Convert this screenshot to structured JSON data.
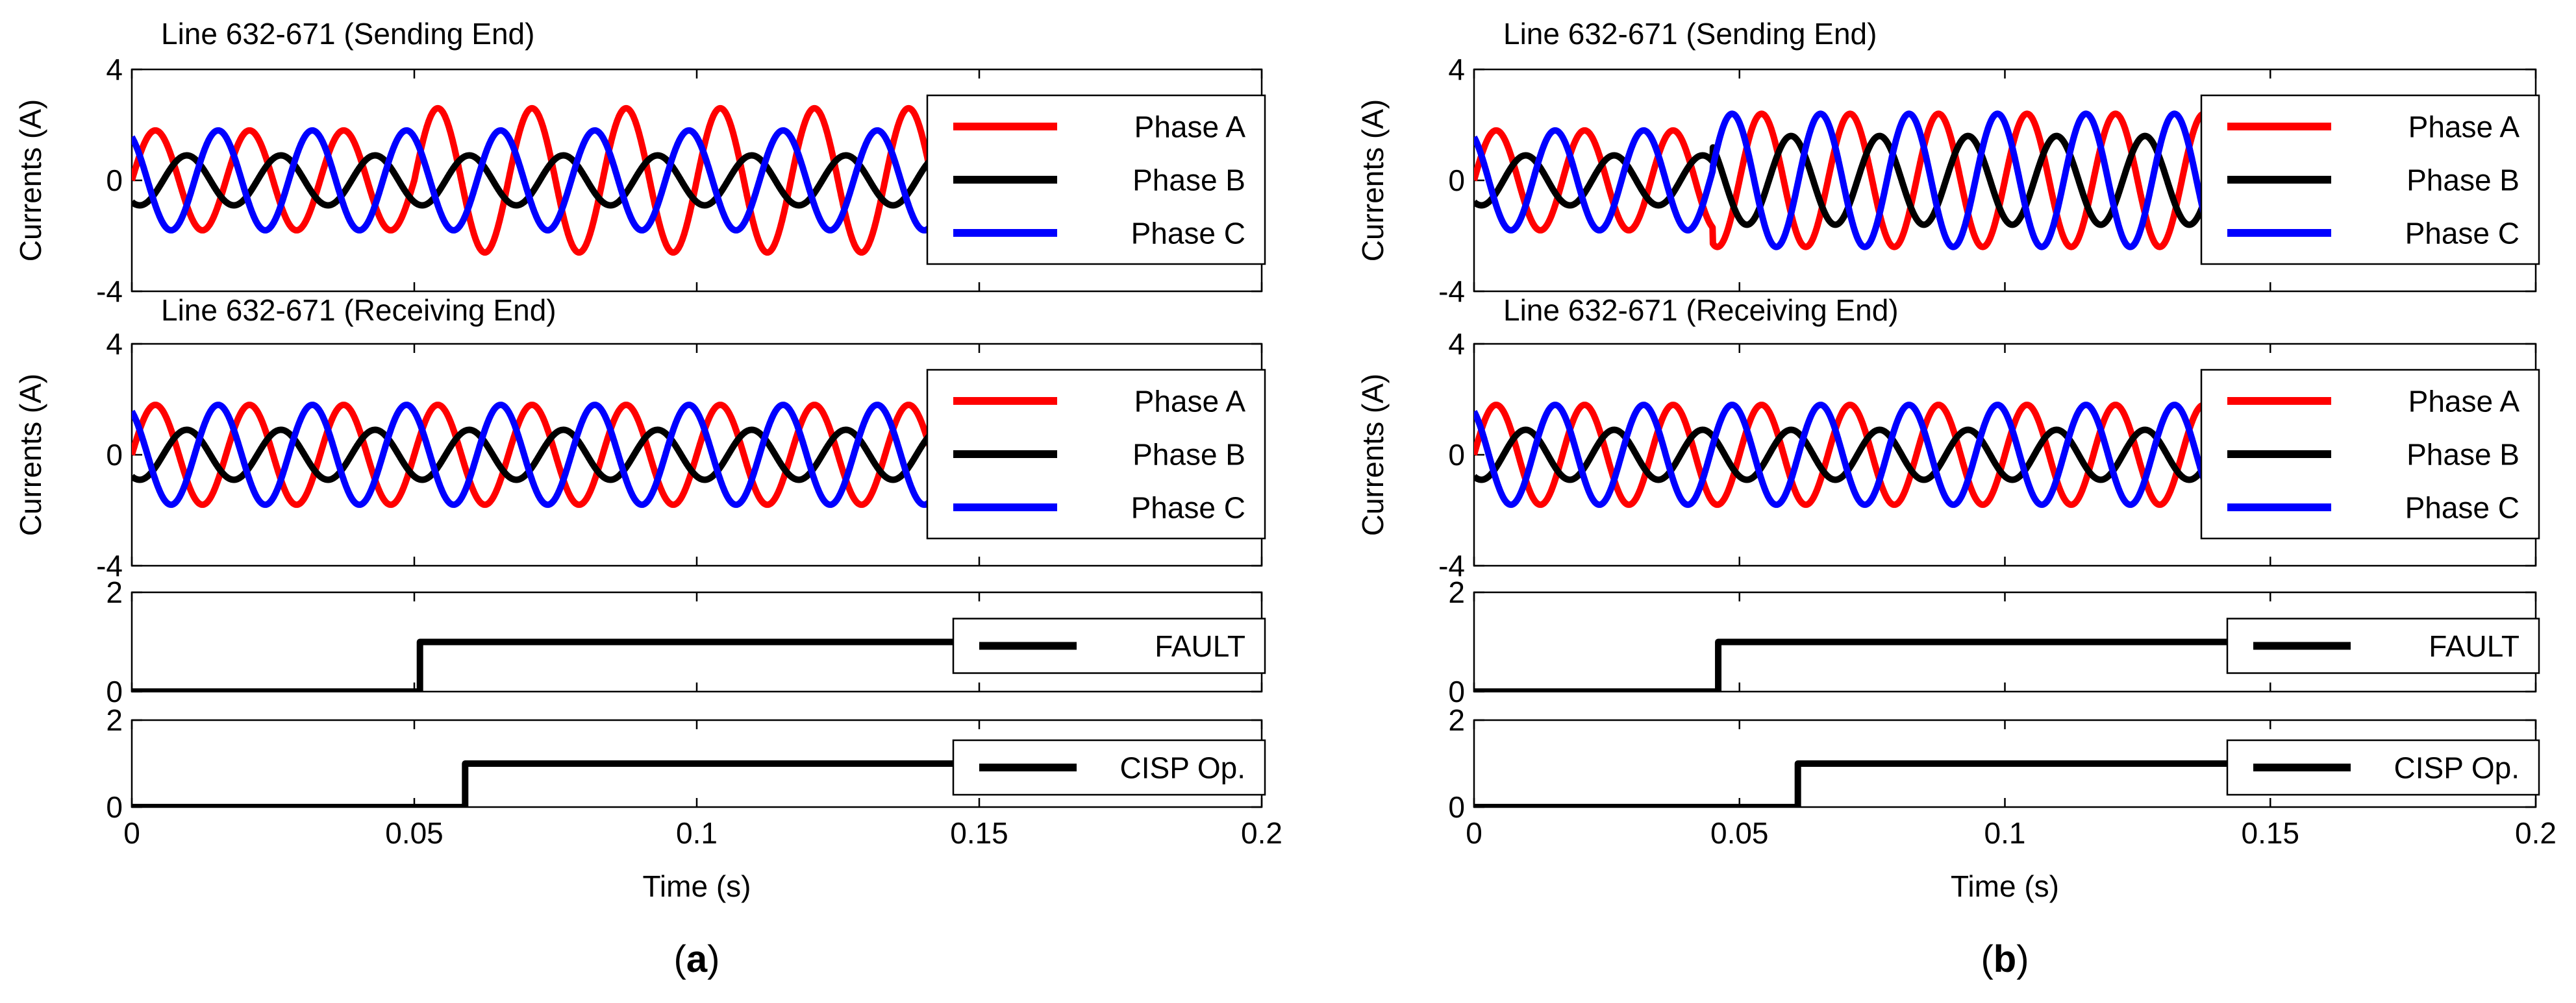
{
  "chart_data": [
    {
      "panel_label": "(a)",
      "xlabel": "Time (s)",
      "xlim": [
        0,
        0.2
      ],
      "xticks": [
        0,
        0.05,
        0.1,
        0.15,
        0.2
      ],
      "xtick_labels": [
        "0",
        "0.05",
        "0.1",
        "0.15",
        "0.2"
      ],
      "subplots": [
        {
          "type": "line",
          "title": "Line 632-671 (Sending End)",
          "ylabel": "Currents (A)",
          "ylim": [
            -4,
            4
          ],
          "yticks": [
            -4,
            0,
            4
          ],
          "legend": "right",
          "frequency_hz": 60,
          "change_time": 0.05,
          "series": [
            {
              "name": "Phase A",
              "color": "#ff0000",
              "amplitude_before": 1.8,
              "amplitude_after": 2.6,
              "phase_deg": 0
            },
            {
              "name": "Phase B",
              "color": "#000000",
              "amplitude_before": 0.9,
              "amplitude_after": 0.9,
              "phase_deg": -120
            },
            {
              "name": "Phase C",
              "color": "#0000ff",
              "amplitude_before": 1.8,
              "amplitude_after": 1.8,
              "phase_deg": 120
            }
          ]
        },
        {
          "type": "line",
          "title": "Line 632-671 (Receiving End)",
          "ylabel": "Currents (A)",
          "ylim": [
            -4,
            4
          ],
          "yticks": [
            -4,
            0,
            4
          ],
          "legend": "right",
          "frequency_hz": 60,
          "change_time": 0.05,
          "series": [
            {
              "name": "Phase A",
              "color": "#ff0000",
              "amplitude_before": 1.8,
              "amplitude_after": 1.8,
              "phase_deg": 0
            },
            {
              "name": "Phase B",
              "color": "#000000",
              "amplitude_before": 0.9,
              "amplitude_after": 0.9,
              "phase_deg": -120
            },
            {
              "name": "Phase C",
              "color": "#0000ff",
              "amplitude_before": 1.8,
              "amplitude_after": 1.8,
              "phase_deg": 120
            }
          ]
        },
        {
          "type": "line",
          "ylim": [
            0,
            2
          ],
          "yticks": [
            0,
            2
          ],
          "legend": "right",
          "series": [
            {
              "name": "FAULT",
              "color": "#000000",
              "step_time": 0.051,
              "low": 0,
              "high": 1
            }
          ]
        },
        {
          "type": "line",
          "ylim": [
            0,
            2
          ],
          "yticks": [
            0,
            2
          ],
          "legend": "right",
          "series": [
            {
              "name": "CISP Op.",
              "color": "#000000",
              "step_time": 0.059,
              "low": 0,
              "high": 1
            }
          ]
        }
      ]
    },
    {
      "panel_label": "(b)",
      "xlabel": "Time (s)",
      "xlim": [
        0,
        0.2
      ],
      "xticks": [
        0,
        0.05,
        0.1,
        0.15,
        0.2
      ],
      "xtick_labels": [
        "0",
        "0.05",
        "0.1",
        "0.15",
        "0.2"
      ],
      "subplots": [
        {
          "type": "line",
          "title": "Line 632-671 (Sending End)",
          "ylabel": "Currents (A)",
          "ylim": [
            -4,
            4
          ],
          "yticks": [
            -4,
            0,
            4
          ],
          "legend": "right",
          "frequency_hz": 60,
          "change_time": 0.045,
          "series": [
            {
              "name": "Phase A",
              "color": "#ff0000",
              "amplitude_before": 1.8,
              "amplitude_after": 2.4,
              "phase_deg": 0
            },
            {
              "name": "Phase B",
              "color": "#000000",
              "amplitude_before": 0.9,
              "amplitude_after": 1.6,
              "phase_deg": -120
            },
            {
              "name": "Phase C",
              "color": "#0000ff",
              "amplitude_before": 1.8,
              "amplitude_after": 2.4,
              "phase_deg": 120
            }
          ]
        },
        {
          "type": "line",
          "title": "Line 632-671 (Receiving End)",
          "ylabel": "Currents (A)",
          "ylim": [
            -4,
            4
          ],
          "yticks": [
            -4,
            0,
            4
          ],
          "legend": "right",
          "frequency_hz": 60,
          "change_time": 0.045,
          "series": [
            {
              "name": "Phase A",
              "color": "#ff0000",
              "amplitude_before": 1.8,
              "amplitude_after": 1.8,
              "phase_deg": 0
            },
            {
              "name": "Phase B",
              "color": "#000000",
              "amplitude_before": 0.9,
              "amplitude_after": 0.9,
              "phase_deg": -120
            },
            {
              "name": "Phase C",
              "color": "#0000ff",
              "amplitude_before": 1.8,
              "amplitude_after": 1.8,
              "phase_deg": 120
            }
          ]
        },
        {
          "type": "line",
          "ylim": [
            0,
            2
          ],
          "yticks": [
            0,
            2
          ],
          "legend": "right",
          "series": [
            {
              "name": "FAULT",
              "color": "#000000",
              "step_time": 0.046,
              "low": 0,
              "high": 1
            }
          ]
        },
        {
          "type": "line",
          "ylim": [
            0,
            2
          ],
          "yticks": [
            0,
            2
          ],
          "legend": "right",
          "series": [
            {
              "name": "CISP Op.",
              "color": "#000000",
              "step_time": 0.061,
              "low": 0,
              "high": 1
            }
          ]
        }
      ]
    }
  ]
}
